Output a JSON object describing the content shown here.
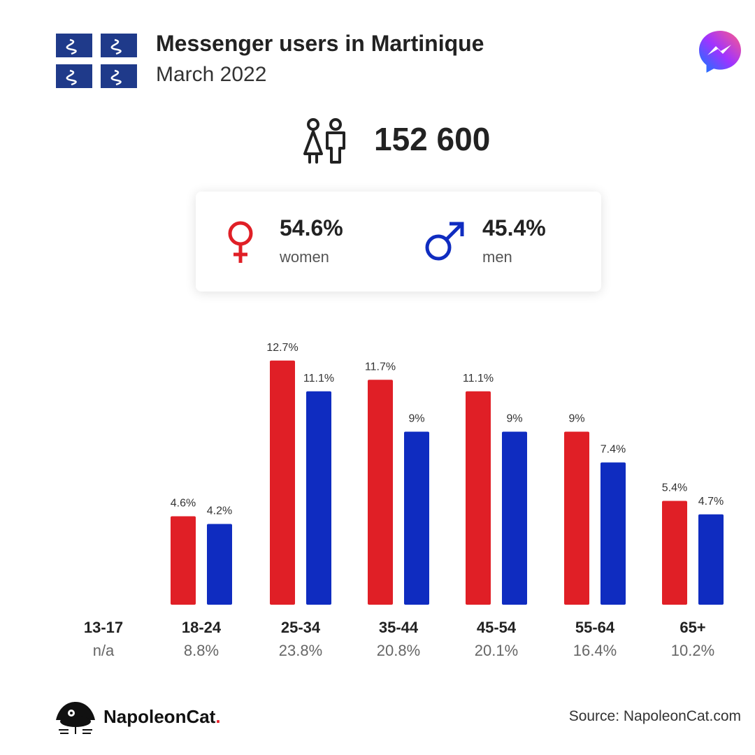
{
  "header": {
    "title": "Messenger users in Martinique",
    "subtitle": "March 2022"
  },
  "summary": {
    "total_users": "152 600",
    "women": {
      "pct": "54.6%",
      "label": "women",
      "color": "#e01f26"
    },
    "men": {
      "pct": "45.4%",
      "label": "men",
      "color": "#0f2cc0"
    }
  },
  "colors": {
    "women": "#e01f26",
    "men": "#0f2cc0",
    "flag_blue": "#1f3a8a"
  },
  "chart_data": {
    "type": "bar",
    "categories": [
      "13-17",
      "18-24",
      "25-34",
      "35-44",
      "45-54",
      "55-64",
      "65+"
    ],
    "category_totals": [
      "n/a",
      "8.8%",
      "23.8%",
      "20.8%",
      "20.1%",
      "16.4%",
      "10.2%"
    ],
    "series": [
      {
        "key": "women",
        "values": [
          null,
          4.6,
          12.7,
          11.7,
          11.1,
          9,
          5.4
        ],
        "labels": [
          "",
          "4.6%",
          "12.7%",
          "11.7%",
          "11.1%",
          "9%",
          "5.4%"
        ]
      },
      {
        "key": "men",
        "values": [
          null,
          4.2,
          11.1,
          9,
          9,
          7.4,
          4.7
        ],
        "labels": [
          "",
          "4.2%",
          "11.1%",
          "9%",
          "9%",
          "7.4%",
          "4.7%"
        ]
      }
    ],
    "ylim": [
      0,
      12.7
    ],
    "grid": false
  },
  "footer": {
    "brand_name": "NapoleonCat",
    "brand_dot": ".",
    "source": "Source: NapoleonCat.com"
  },
  "icons": {
    "flag": "martinique-flag-icon",
    "messenger": "messenger-logo-icon",
    "people": "people-icon",
    "female": "female-symbol-icon",
    "male": "male-symbol-icon",
    "brand": "napoleoncat-logo-icon"
  }
}
